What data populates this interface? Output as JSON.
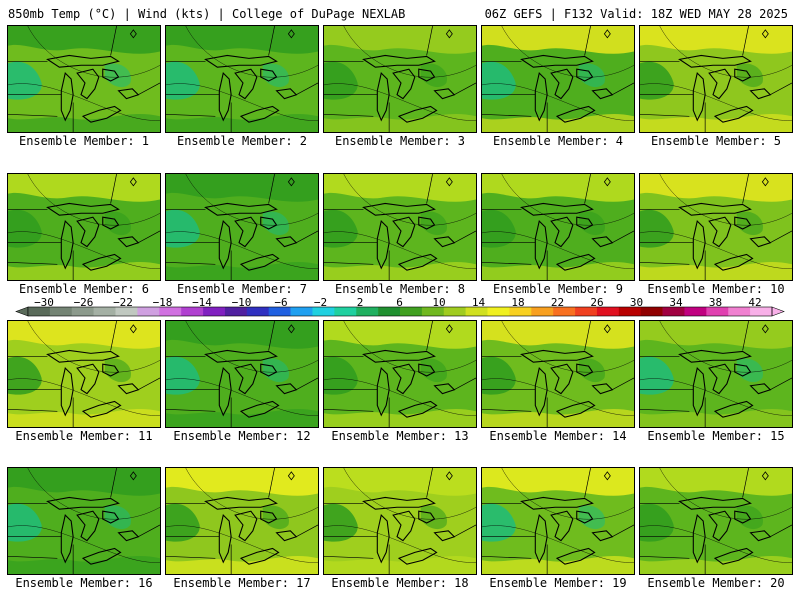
{
  "header": {
    "left_title": "850mb Temp (°C) | Wind (kts) | College of DuPage NEXLAB",
    "right_title": "06Z GEFS | F132 Valid: 18Z WED MAY 28 2025"
  },
  "members": [
    {
      "label": "Ensemble Member: 1",
      "base": "#6fbc1e",
      "tint": "#2f9c1e",
      "accent": "#1ebc7a"
    },
    {
      "label": "Ensemble Member: 2",
      "base": "#5db51e",
      "tint": "#2f9c1e",
      "accent": "#1ebc7a"
    },
    {
      "label": "Ensemble Member: 3",
      "base": "#5db51e",
      "tint": "#9fcf1e",
      "accent": "#2f9c1e"
    },
    {
      "label": "Ensemble Member: 4",
      "base": "#4fae1e",
      "tint": "#e8e81e",
      "accent": "#1ebc7a"
    },
    {
      "label": "Ensemble Member: 5",
      "base": "#8fc71e",
      "tint": "#e8e81e",
      "accent": "#2f9c1e"
    },
    {
      "label": "Ensemble Member: 6",
      "base": "#4fae1e",
      "tint": "#bfe01e",
      "accent": "#2f9c1e"
    },
    {
      "label": "Ensemble Member: 7",
      "base": "#4fae1e",
      "tint": "#2f9c1e",
      "accent": "#1ebc7a"
    },
    {
      "label": "Ensemble Member: 8",
      "base": "#5db51e",
      "tint": "#bfe01e",
      "accent": "#2f9c1e"
    },
    {
      "label": "Ensemble Member: 9",
      "base": "#4fae1e",
      "tint": "#bfe01e",
      "accent": "#2f9c1e"
    },
    {
      "label": "Ensemble Member: 10",
      "base": "#7fc21e",
      "tint": "#e8e81e",
      "accent": "#2f9c1e"
    },
    {
      "label": "Ensemble Member: 11",
      "base": "#9fcf1e",
      "tint": "#e8e81e",
      "accent": "#2f9c1e"
    },
    {
      "label": "Ensemble Member: 12",
      "base": "#4fae1e",
      "tint": "#2f9c1e",
      "accent": "#1ebc7a"
    },
    {
      "label": "Ensemble Member: 13",
      "base": "#5db51e",
      "tint": "#bfe01e",
      "accent": "#2f9c1e"
    },
    {
      "label": "Ensemble Member: 14",
      "base": "#6fbc1e",
      "tint": "#e8e81e",
      "accent": "#2f9c1e"
    },
    {
      "label": "Ensemble Member: 15",
      "base": "#5db51e",
      "tint": "#9fcf1e",
      "accent": "#1ebc7a"
    },
    {
      "label": "Ensemble Member: 16",
      "base": "#4fae1e",
      "tint": "#2f9c1e",
      "accent": "#1ebc7a"
    },
    {
      "label": "Ensemble Member: 17",
      "base": "#8fc71e",
      "tint": "#f0f01e",
      "accent": "#2f9c1e"
    },
    {
      "label": "Ensemble Member: 18",
      "base": "#9fcf1e",
      "tint": "#bfe01e",
      "accent": "#2f9c1e"
    },
    {
      "label": "Ensemble Member: 19",
      "base": "#6fbc1e",
      "tint": "#f0f01e",
      "accent": "#1ebc7a"
    },
    {
      "label": "Ensemble Member: 20",
      "base": "#5db51e",
      "tint": "#bfe01e",
      "accent": "#2f9c1e"
    }
  ],
  "colorbar": {
    "unit": "°C",
    "tick_labels": [
      "−30",
      "−26",
      "−22",
      "−18",
      "−14",
      "−10",
      "−6",
      "−2",
      "2",
      "6",
      "10",
      "14",
      "18",
      "22",
      "26",
      "30",
      "34",
      "38",
      "42"
    ],
    "colors": [
      "#5a6b5a",
      "#748474",
      "#8c9a8c",
      "#a4b0a4",
      "#c0c8c0",
      "#cfa0e0",
      "#d070e0",
      "#b040d0",
      "#8020c0",
      "#5020a0",
      "#3030c0",
      "#2060e0",
      "#20a0f0",
      "#20d0e0",
      "#20d0a0",
      "#20b060",
      "#209030",
      "#40a020",
      "#70b820",
      "#a0cc20",
      "#d0e020",
      "#f0f020",
      "#f8d020",
      "#f8a020",
      "#f87020",
      "#f04020",
      "#e01020",
      "#b80000",
      "#900000",
      "#a00040",
      "#c00080",
      "#e040b0",
      "#f080d0",
      "#f8b0e8"
    ]
  }
}
